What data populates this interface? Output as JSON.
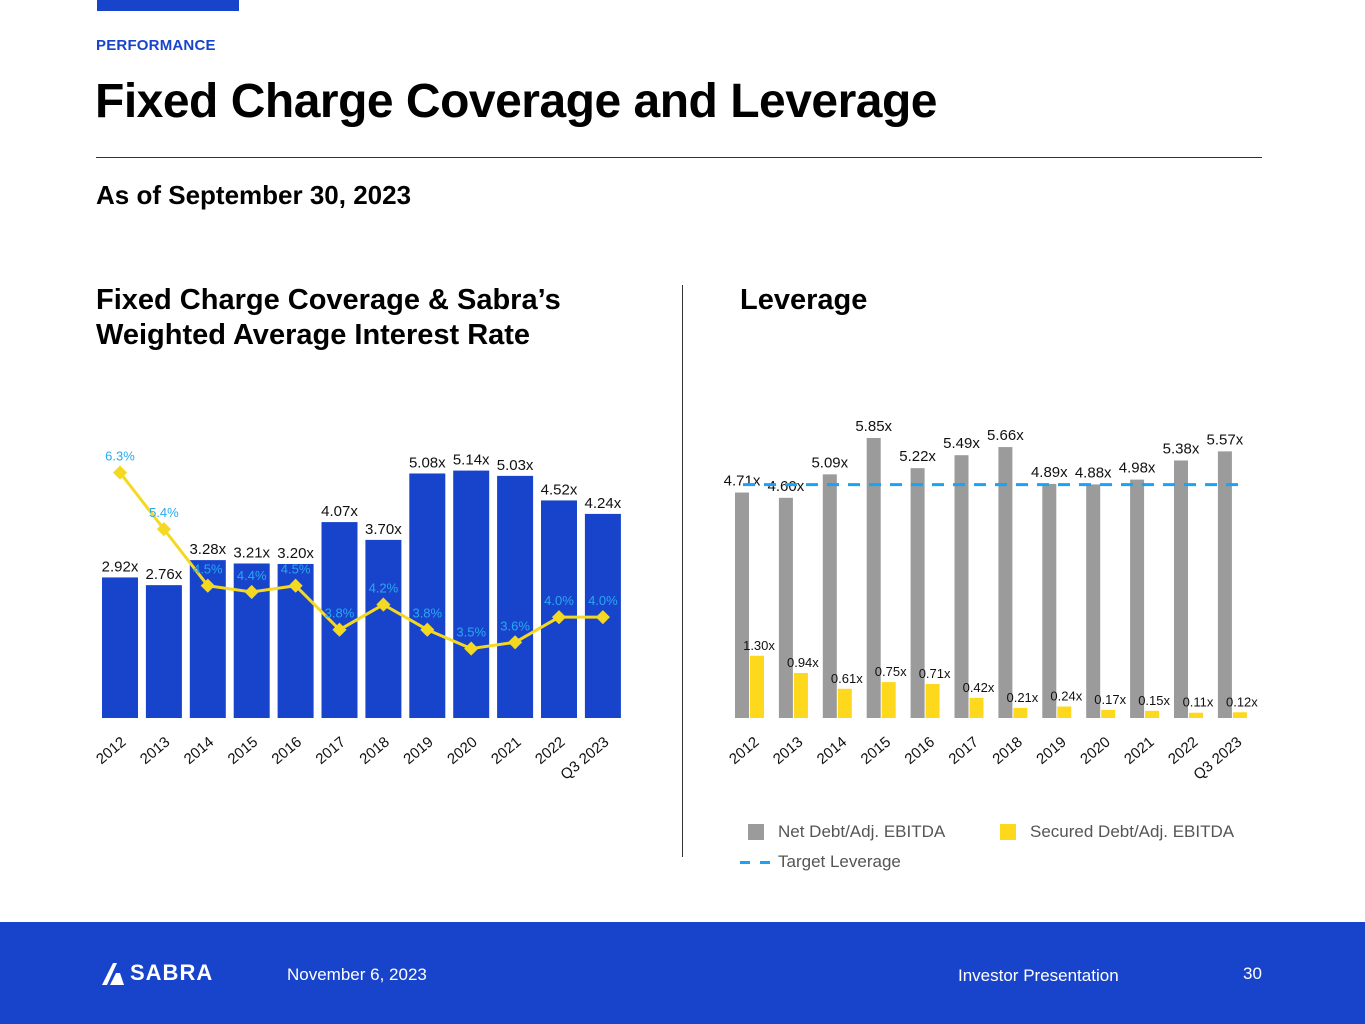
{
  "header": {
    "section": "PERFORMANCE",
    "title": "Fixed Charge Coverage and Leverage",
    "as_of": "As of September 30, 2023"
  },
  "left_title_line1": "Fixed Charge Coverage & Sabra’s",
  "left_title_line2": "Weighted Average Interest Rate",
  "right_title": "Leverage",
  "legend": {
    "net_debt": "Net Debt/Adj. EBITDA",
    "secured_debt": "Secured Debt/Adj. EBITDA",
    "target": "Target Leverage"
  },
  "footer": {
    "logo_text": "SABRA",
    "date": "November 6, 2023",
    "presentation": "Investor Presentation",
    "page": "30"
  },
  "colors": {
    "brand_blue": "#1844cc",
    "line_yellow": "#f5d820",
    "rate_label": "#29a8f0",
    "gray_bar": "#9b9b9b",
    "yellow_bar": "#fdd81c",
    "target_dash": "#19a3f0"
  },
  "chart_data": [
    {
      "type": "bar",
      "title": "Fixed Charge Coverage & Sabra’s Weighted Average Interest Rate",
      "categories": [
        "2012",
        "2013",
        "2014",
        "2015",
        "2016",
        "2017",
        "2018",
        "2019",
        "2020",
        "2021",
        "2022",
        "Q3 2023"
      ],
      "series": [
        {
          "name": "Fixed Charge Coverage",
          "type": "bar",
          "values": [
            2.92,
            2.76,
            3.28,
            3.21,
            3.2,
            4.07,
            3.7,
            5.08,
            5.14,
            5.03,
            4.52,
            4.24
          ],
          "labels": [
            "2.92x",
            "2.76x",
            "3.28x",
            "3.21x",
            "3.20x",
            "4.07x",
            "3.70x",
            "5.08x",
            "5.14x",
            "5.03x",
            "4.52x",
            "4.24x"
          ]
        },
        {
          "name": "Weighted Average Interest Rate",
          "type": "line",
          "values": [
            6.3,
            5.4,
            4.5,
            4.4,
            4.5,
            3.8,
            4.2,
            3.8,
            3.5,
            3.6,
            4.0,
            4.0
          ],
          "labels": [
            "6.3%",
            "5.4%",
            "4.5%",
            "4.4%",
            "4.5%",
            "3.8%",
            "4.2%",
            "3.8%",
            "3.5%",
            "3.6%",
            "4.0%",
            "4.0%"
          ]
        }
      ],
      "ylim": [
        0,
        5.9
      ],
      "legend": "none",
      "grid": false
    },
    {
      "type": "bar",
      "title": "Leverage",
      "categories": [
        "2012",
        "2013",
        "2014",
        "2015",
        "2016",
        "2017",
        "2018",
        "2019",
        "2020",
        "2021",
        "2022",
        "Q3 2023"
      ],
      "series": [
        {
          "name": "Net Debt/Adj. EBITDA",
          "values": [
            4.71,
            4.6,
            5.09,
            5.85,
            5.22,
            5.49,
            5.66,
            4.89,
            4.88,
            4.98,
            5.38,
            5.57
          ],
          "labels": [
            "4.71x",
            "4.60x",
            "5.09x",
            "5.85x",
            "5.22x",
            "5.49x",
            "5.66x",
            "4.89x",
            "4.88x",
            "4.98x",
            "5.38x",
            "5.57x"
          ]
        },
        {
          "name": "Secured Debt/Adj. EBITDA",
          "values": [
            1.3,
            0.94,
            0.61,
            0.75,
            0.71,
            0.42,
            0.21,
            0.24,
            0.17,
            0.15,
            0.11,
            0.12
          ],
          "labels": [
            "1.30x",
            "0.94x",
            "0.61x",
            "0.75x",
            "0.71x",
            "0.42x",
            "0.21x",
            "0.24x",
            "0.17x",
            "0.15x",
            "0.11x",
            "0.12x"
          ]
        }
      ],
      "target_leverage": 5.0,
      "ylim": [
        0,
        6.1
      ],
      "legend": "bottom",
      "grid": false
    }
  ]
}
